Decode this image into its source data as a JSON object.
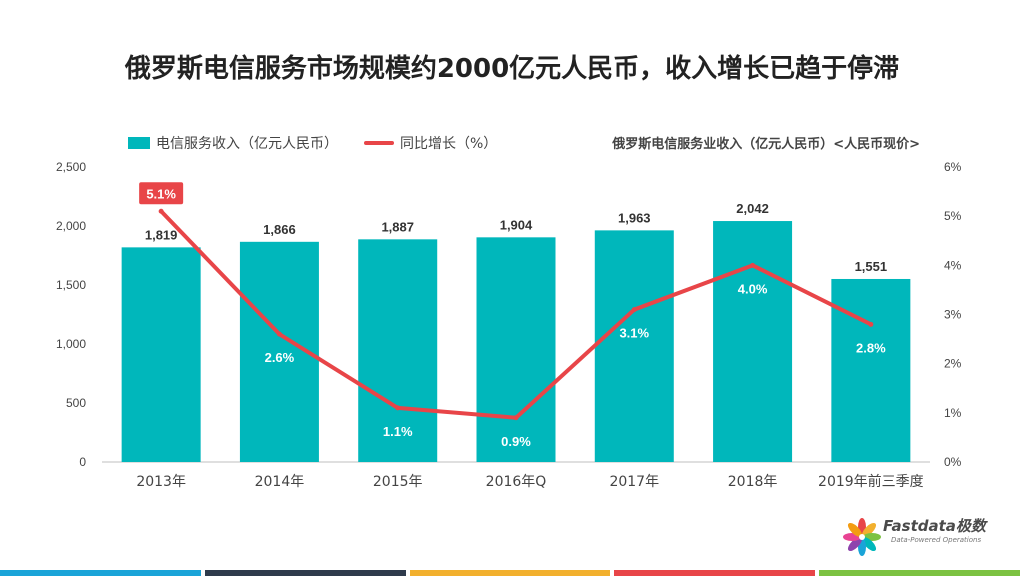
{
  "title": "俄罗斯电信服务市场规模约2000亿元人民币，收入增长已趋于停滞",
  "legend": {
    "bar_label": "电信服务收入（亿元人民币）",
    "line_label": "同比增长（%）"
  },
  "note": "俄罗斯电信服务业收入（亿元人民币）<人民币现价>",
  "logo": {
    "name": "Fastdata极数",
    "tagline": "Data-Powered Operations"
  },
  "colors": {
    "bar": "#00B7BB",
    "line": "#E84548",
    "footer": [
      "#1AA4D8",
      "#2F3B4C",
      "#F2B02E",
      "#E84548",
      "#7CC242"
    ]
  },
  "chart_data": {
    "type": "bar+line",
    "categories": [
      "2013年",
      "2014年",
      "2015年",
      "2016年Q",
      "2017年",
      "2018年",
      "2019年前三季度"
    ],
    "bar_values": [
      1819,
      1866,
      1887,
      1904,
      1963,
      2042,
      1551
    ],
    "bar_labels": [
      "1,819",
      "1,866",
      "1,887",
      "1,904",
      "1,963",
      "2,042",
      "1,551"
    ],
    "line_values": [
      5.1,
      2.6,
      1.1,
      0.9,
      3.1,
      4.0,
      2.8
    ],
    "line_labels": [
      "5.1%",
      "2.6%",
      "1.1%",
      "0.9%",
      "3.1%",
      "4.0%",
      "2.8%"
    ],
    "left_axis": {
      "min": 0,
      "max": 2500,
      "ticks": [
        "0",
        "500",
        "1,000",
        "1,500",
        "2,000",
        "2,500"
      ]
    },
    "right_axis": {
      "min": 0,
      "max": 6,
      "ticks": [
        "0%",
        "1%",
        "2%",
        "3%",
        "4%",
        "5%",
        "6%"
      ]
    },
    "highlight_index": 0
  }
}
